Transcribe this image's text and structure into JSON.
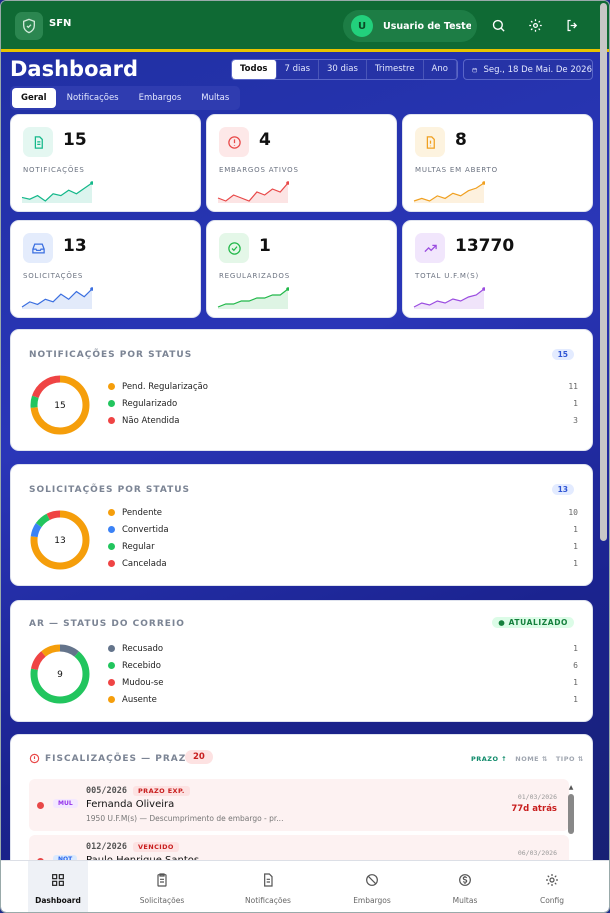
{
  "app": {
    "name": "SFN"
  },
  "user": {
    "initial": "U",
    "name": "Usuario de Testes ..."
  },
  "page": {
    "title": "Dashboard"
  },
  "periods": [
    "Todos",
    "7 dias",
    "30 dias",
    "Trimestre",
    "Ano"
  ],
  "active_period": "Todos",
  "date_label": "Seg., 18 De Mai. De 2026",
  "tabs": [
    "Geral",
    "Notificações",
    "Embargos",
    "Multas"
  ],
  "active_tab": "Geral",
  "stats": [
    {
      "value": "15",
      "label": "NOTIFICAÇÕES",
      "color": "#14b88a",
      "icon": "document-icon"
    },
    {
      "value": "4",
      "label": "EMBARGOS ATIVOS",
      "color": "#e84848",
      "icon": "alert-circle-icon"
    },
    {
      "value": "8",
      "label": "MULTAS EM ABERTO",
      "color": "#f0a020",
      "icon": "alert-file-icon"
    },
    {
      "value": "13",
      "label": "SOLICITAÇÕES",
      "color": "#3b6fe0",
      "icon": "inbox-icon"
    },
    {
      "value": "1",
      "label": "REGULARIZADOS",
      "color": "#22b84a",
      "icon": "check-circle-icon"
    },
    {
      "value": "13770",
      "label": "TOTAL U.F.M(S)",
      "color": "#9b4de0",
      "icon": "trending-up-icon"
    }
  ],
  "notif_status": {
    "title": "NOTIFICAÇÕES POR STATUS",
    "badge": "15",
    "total": "15",
    "items": [
      {
        "label": "Pend. Regularização",
        "value": "11",
        "color": "#f59e0b"
      },
      {
        "label": "Regularizado",
        "value": "1",
        "color": "#22c55e"
      },
      {
        "label": "Não Atendida",
        "value": "3",
        "color": "#ef4444"
      }
    ]
  },
  "solic_status": {
    "title": "SOLICITAÇÕES POR STATUS",
    "badge": "13",
    "total": "13",
    "items": [
      {
        "label": "Pendente",
        "value": "10",
        "color": "#f59e0b"
      },
      {
        "label": "Convertida",
        "value": "1",
        "color": "#3b82f6"
      },
      {
        "label": "Regular",
        "value": "1",
        "color": "#22c55e"
      },
      {
        "label": "Cancelada",
        "value": "1",
        "color": "#ef4444"
      }
    ]
  },
  "ar_status": {
    "title": "AR — STATUS DO CORREIO",
    "badge": "ATUALIZADO",
    "total": "9",
    "items": [
      {
        "label": "Recusado",
        "value": "1",
        "color": "#64748b"
      },
      {
        "label": "Recebido",
        "value": "6",
        "color": "#22c55e"
      },
      {
        "label": "Mudou-se",
        "value": "1",
        "color": "#ef4444"
      },
      {
        "label": "Ausente",
        "value": "1",
        "color": "#f59e0b"
      }
    ]
  },
  "fisc": {
    "title": "FISCALIZAÇÕES — PRAZOS",
    "count": "20",
    "sort": [
      "PRAZO ↑",
      "NOME ⇅",
      "TIPO ⇅"
    ],
    "items": [
      {
        "type": "MUL",
        "code": "005/2026",
        "tag": "PRAZO EXP.",
        "name": "Fernanda Oliveira",
        "desc": "1950 U.F.M(s) — Descumprimento de embargo - pr...",
        "date": "01/03/2026",
        "ago": "77d atrás"
      },
      {
        "type": "NOT",
        "code": "012/2026",
        "tag": "VENCIDO",
        "name": "Paulo Henrique Santos",
        "desc": "",
        "date": "06/03/2026",
        "ago": ""
      }
    ]
  },
  "nav": [
    "Dashboard",
    "Solicitações",
    "Notificações",
    "Embargos",
    "Multas",
    "Config"
  ],
  "active_nav": "Dashboard"
}
